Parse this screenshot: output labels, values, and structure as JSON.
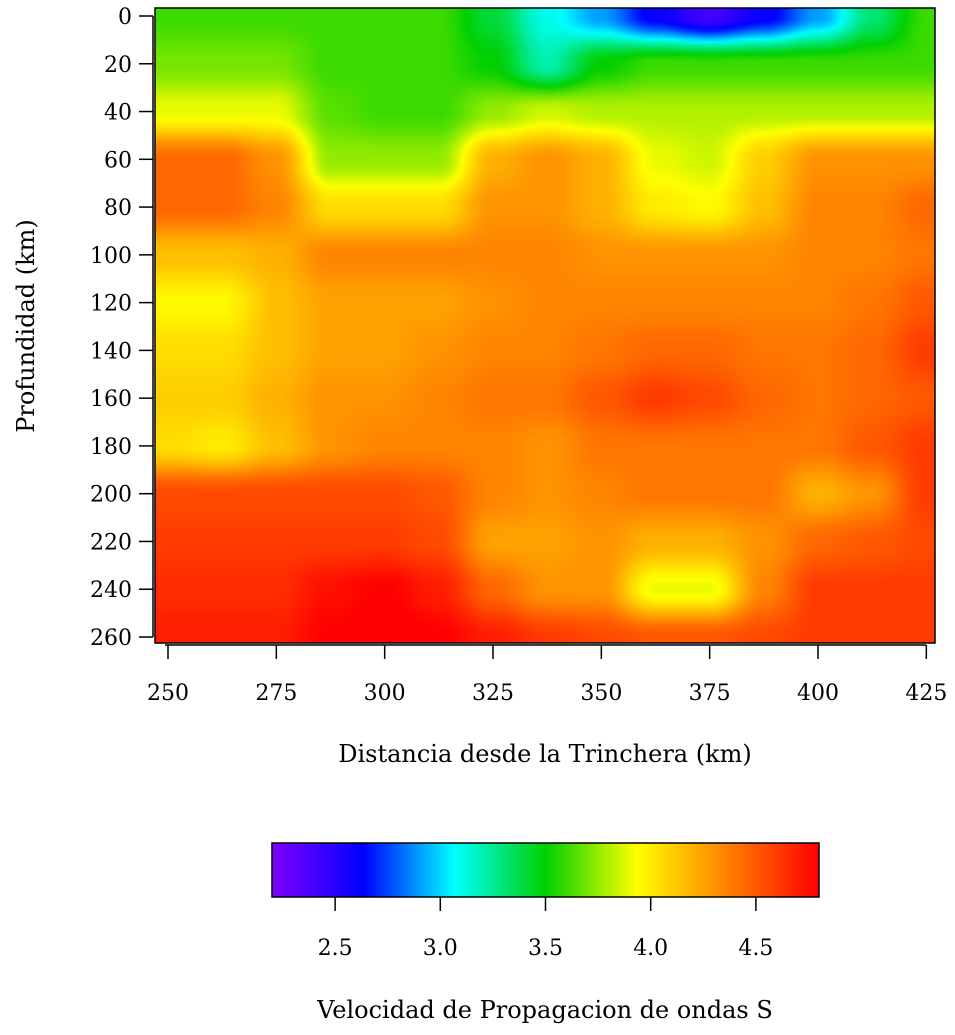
{
  "chart_data": {
    "type": "heatmap",
    "xlabel": "Distancia desde la Trinchera (km)",
    "ylabel": "Profundidad (km)",
    "colorbar_label": "Velocidad de Propagacion de ondas S",
    "xlim": [
      247,
      427
    ],
    "ylim": [
      0,
      260
    ],
    "x_ticks": [
      250,
      275,
      300,
      325,
      350,
      375,
      400,
      425
    ],
    "y_ticks": [
      0,
      20,
      40,
      60,
      80,
      100,
      120,
      140,
      160,
      180,
      200,
      220,
      240,
      260
    ],
    "colorbar_range": [
      2.2,
      4.8
    ],
    "colorbar_ticks": [
      2.5,
      3.0,
      3.5,
      4.0,
      4.5
    ],
    "colormap": [
      "#8000ff",
      "#0000ff",
      "#00ffff",
      "#00d000",
      "#ffff00",
      "#ff8000",
      "#ff0000"
    ],
    "x_centers": [
      250,
      262.5,
      275,
      287.5,
      300,
      312.5,
      325,
      337.5,
      350,
      362.5,
      375,
      387.5,
      400,
      412.5,
      425
    ],
    "y_centers": [
      0,
      20,
      40,
      60,
      80,
      100,
      120,
      140,
      160,
      180,
      200,
      220,
      240,
      260
    ],
    "values": [
      [
        3.6,
        3.6,
        3.6,
        3.6,
        3.6,
        3.6,
        3.4,
        3.1,
        2.9,
        2.6,
        2.4,
        2.6,
        2.9,
        3.3,
        3.6
      ],
      [
        3.7,
        3.7,
        3.7,
        3.6,
        3.6,
        3.6,
        3.5,
        3.2,
        3.5,
        3.6,
        3.6,
        3.6,
        3.6,
        3.6,
        3.6
      ],
      [
        3.9,
        3.9,
        3.9,
        3.65,
        3.6,
        3.6,
        3.75,
        3.85,
        3.8,
        3.8,
        3.8,
        3.8,
        3.8,
        3.8,
        3.8
      ],
      [
        4.45,
        4.45,
        4.3,
        3.75,
        3.75,
        3.75,
        4.2,
        4.3,
        4.2,
        3.9,
        3.85,
        4.1,
        4.3,
        4.3,
        4.3
      ],
      [
        4.45,
        4.45,
        4.35,
        4.05,
        4.05,
        4.05,
        4.3,
        4.3,
        4.2,
        4.0,
        3.95,
        4.15,
        4.35,
        4.35,
        4.45
      ],
      [
        4.15,
        4.15,
        4.2,
        4.35,
        4.35,
        4.35,
        4.35,
        4.35,
        4.3,
        4.3,
        4.3,
        4.3,
        4.35,
        4.35,
        4.4
      ],
      [
        3.95,
        3.95,
        4.15,
        4.25,
        4.25,
        4.25,
        4.3,
        4.35,
        4.35,
        4.35,
        4.35,
        4.35,
        4.35,
        4.4,
        4.5
      ],
      [
        4.05,
        4.05,
        4.15,
        4.25,
        4.25,
        4.3,
        4.35,
        4.35,
        4.4,
        4.45,
        4.45,
        4.4,
        4.4,
        4.45,
        4.6
      ],
      [
        4.1,
        4.1,
        4.2,
        4.3,
        4.3,
        4.35,
        4.4,
        4.4,
        4.5,
        4.6,
        4.55,
        4.45,
        4.4,
        4.45,
        4.5
      ],
      [
        4.05,
        4.0,
        4.15,
        4.3,
        4.35,
        4.35,
        4.35,
        4.3,
        4.4,
        4.4,
        4.4,
        4.4,
        4.4,
        4.5,
        4.6
      ],
      [
        4.55,
        4.55,
        4.55,
        4.55,
        4.55,
        4.5,
        4.35,
        4.3,
        4.35,
        4.4,
        4.4,
        4.4,
        4.2,
        4.3,
        4.6
      ],
      [
        4.6,
        4.6,
        4.6,
        4.6,
        4.6,
        4.55,
        4.25,
        4.25,
        4.3,
        4.2,
        4.2,
        4.3,
        4.45,
        4.5,
        4.55
      ],
      [
        4.65,
        4.65,
        4.65,
        4.75,
        4.8,
        4.7,
        4.45,
        4.3,
        4.3,
        3.9,
        3.9,
        4.35,
        4.6,
        4.6,
        4.6
      ],
      [
        4.7,
        4.7,
        4.7,
        4.8,
        4.85,
        4.8,
        4.7,
        4.6,
        4.55,
        4.5,
        4.5,
        4.55,
        4.6,
        4.6,
        4.6
      ]
    ]
  }
}
